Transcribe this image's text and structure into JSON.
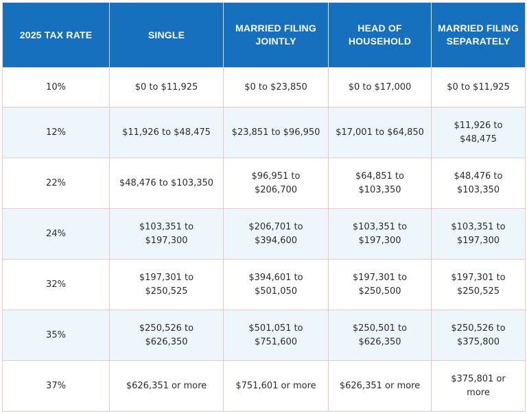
{
  "headers": [
    "2025 TAX RATE",
    "SINGLE",
    "MARRIED FILING JOINTLY",
    "HEAD OF HOUSEHOLD",
    "MARRIED FILING SEPARATELY"
  ],
  "rows": [
    [
      "10%",
      "$0 to $11,925",
      "$0 to $23,850",
      "$0 to $17,000",
      "$0 to $11,925"
    ],
    [
      "12%",
      "$11,926 to $48,475",
      "$23,851 to $96,950",
      "$17,001 to $64,850",
      "$11,926 to $48,475"
    ],
    [
      "22%",
      "$48,476 to $103,350",
      "$96,951 to $206,700",
      "$64,851 to $103,350",
      "$48,476 to $103,350"
    ],
    [
      "24%",
      "$103,351 to $197,300",
      "$206,701 to $394,600",
      "$103,351 to $197,300",
      "$103,351 to $197,300"
    ],
    [
      "32%",
      "$197,301 to $250,525",
      "$394,601 to $501,050",
      "$197,301 to $250,500",
      "$197,301 to $250,525"
    ],
    [
      "35%",
      "$250,526 to $626,350",
      "$501,051 to $751,600",
      "$250,501 to $626,350",
      "$250,526 to $375,800"
    ],
    [
      "37%",
      "$626,351 or more",
      "$751,601 or more",
      "$626,351 or more",
      "$375,801 or more"
    ]
  ],
  "colors": {
    "header_bg": "#1670bd",
    "header_text": "#ffffff",
    "row_alt_bg": "#edf6fb",
    "cell_border": "#f0c4c4"
  }
}
